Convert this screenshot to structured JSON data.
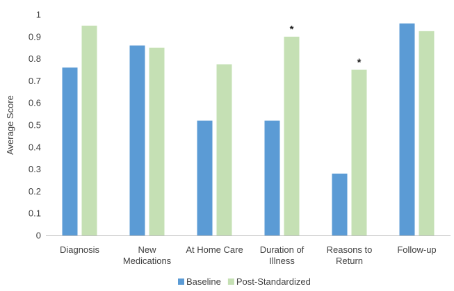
{
  "chart_data": {
    "type": "bar",
    "title": "",
    "xlabel": "",
    "ylabel": "Average Score",
    "ylim": [
      0,
      1
    ],
    "yticks": [
      "0",
      "0.1",
      "0.2",
      "0.3",
      "0.4",
      "0.5",
      "0.6",
      "0.7",
      "0.8",
      "0.9",
      "1"
    ],
    "categories": [
      [
        "Diagnosis"
      ],
      [
        "New",
        "Medications"
      ],
      [
        "At Home Care"
      ],
      [
        "Duration of",
        "Illness"
      ],
      [
        "Reasons to",
        "Return"
      ],
      [
        "Follow-up"
      ]
    ],
    "series": [
      {
        "name": "Baseline",
        "color": "#5b9bd5",
        "values": [
          0.76,
          0.86,
          0.52,
          0.52,
          0.28,
          0.96
        ]
      },
      {
        "name": "Post-Standardized",
        "color": "#c5e0b4",
        "values": [
          0.95,
          0.85,
          0.775,
          0.9,
          0.75,
          0.925
        ]
      }
    ],
    "annotations": [
      {
        "category_index": 3,
        "series_index": 1,
        "text": "*"
      },
      {
        "category_index": 4,
        "series_index": 1,
        "text": "*"
      }
    ],
    "grid": false,
    "legend_position": "bottom"
  }
}
